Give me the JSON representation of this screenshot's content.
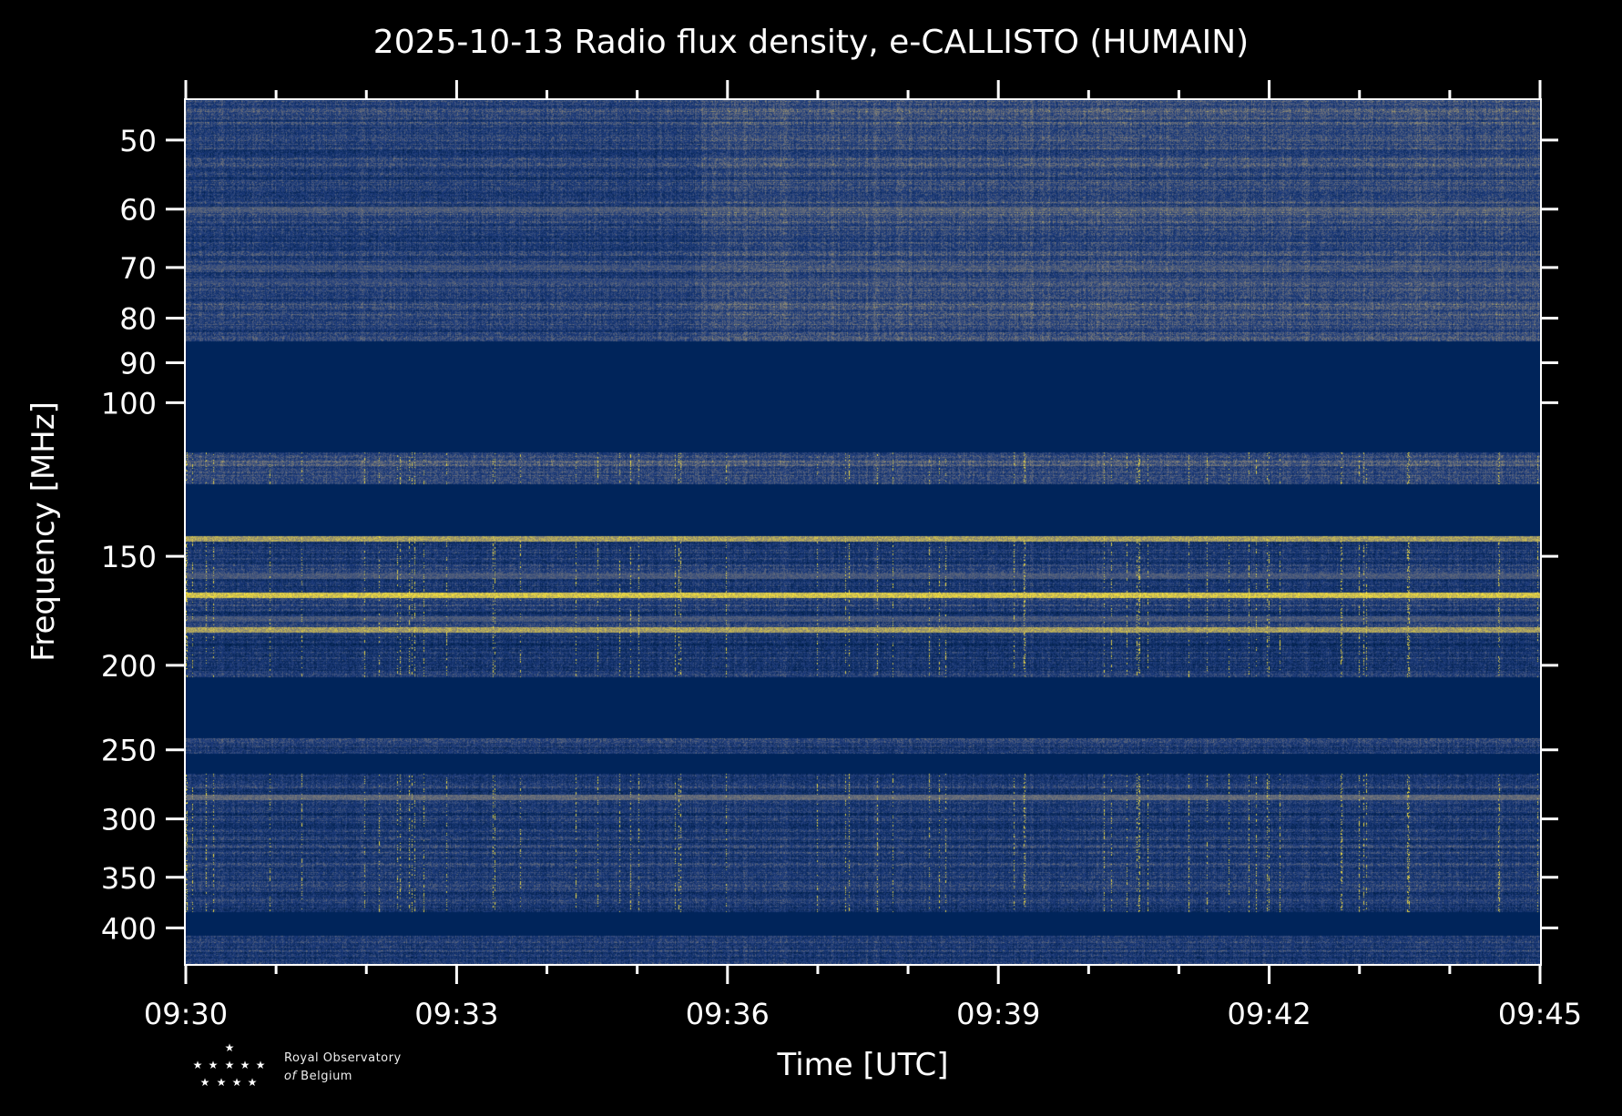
{
  "chart_data": {
    "type": "heatmap",
    "title": "2025-10-13 Radio flux density, e-CALLISTO (HUMAIN)",
    "xlabel": "Time [UTC]",
    "ylabel": "Frequency [MHz]",
    "x_ticks": [
      "09:30",
      "09:33",
      "09:36",
      "09:39",
      "09:42",
      "09:45"
    ],
    "x_range_minutes": [
      0,
      15
    ],
    "x_major_step_minutes": 3,
    "x_minor_step_minutes": 1,
    "y_scale": "log",
    "y_inverted": true,
    "ylim": [
      45,
      440
    ],
    "y_ticks": [
      50,
      60,
      70,
      80,
      90,
      100,
      150,
      200,
      250,
      300,
      350,
      400
    ],
    "colormap": "cividis",
    "colors": {
      "low": "#00204c",
      "flat": "#00245a",
      "mid": "#7c7b78",
      "high": "#fee838"
    },
    "bands": [
      {
        "from": 45,
        "to": 85,
        "kind": "noise",
        "level": 0.35
      },
      {
        "from": 85,
        "to": 114,
        "kind": "flat"
      },
      {
        "from": 114,
        "to": 124,
        "kind": "noise",
        "level": 0.4,
        "bursts": true
      },
      {
        "from": 124,
        "to": 142,
        "kind": "flat"
      },
      {
        "from": 142,
        "to": 206,
        "kind": "noise",
        "level": 0.3,
        "bursts": true
      },
      {
        "from": 206,
        "to": 242,
        "kind": "flat"
      },
      {
        "from": 242,
        "to": 252,
        "kind": "noise",
        "level": 0.3
      },
      {
        "from": 252,
        "to": 266,
        "kind": "flat"
      },
      {
        "from": 266,
        "to": 383,
        "kind": "noise",
        "level": 0.3,
        "bursts": true
      },
      {
        "from": 383,
        "to": 408,
        "kind": "flat"
      },
      {
        "from": 408,
        "to": 440,
        "kind": "noise",
        "level": 0.3
      }
    ],
    "lines": [
      {
        "freq": 60,
        "level": 0.6
      },
      {
        "freq": 70,
        "level": 0.55
      },
      {
        "freq": 72.5,
        "level": 0.5
      },
      {
        "freq": 143,
        "level": 0.9
      },
      {
        "freq": 158,
        "level": 0.6
      },
      {
        "freq": 166,
        "level": 1.0
      },
      {
        "freq": 177,
        "level": 0.6
      },
      {
        "freq": 182,
        "level": 0.9
      },
      {
        "freq": 283,
        "level": 0.7
      }
    ]
  },
  "logo": {
    "line1": "Royal Observatory",
    "line2_italic": "of",
    "line2": "Belgium"
  }
}
